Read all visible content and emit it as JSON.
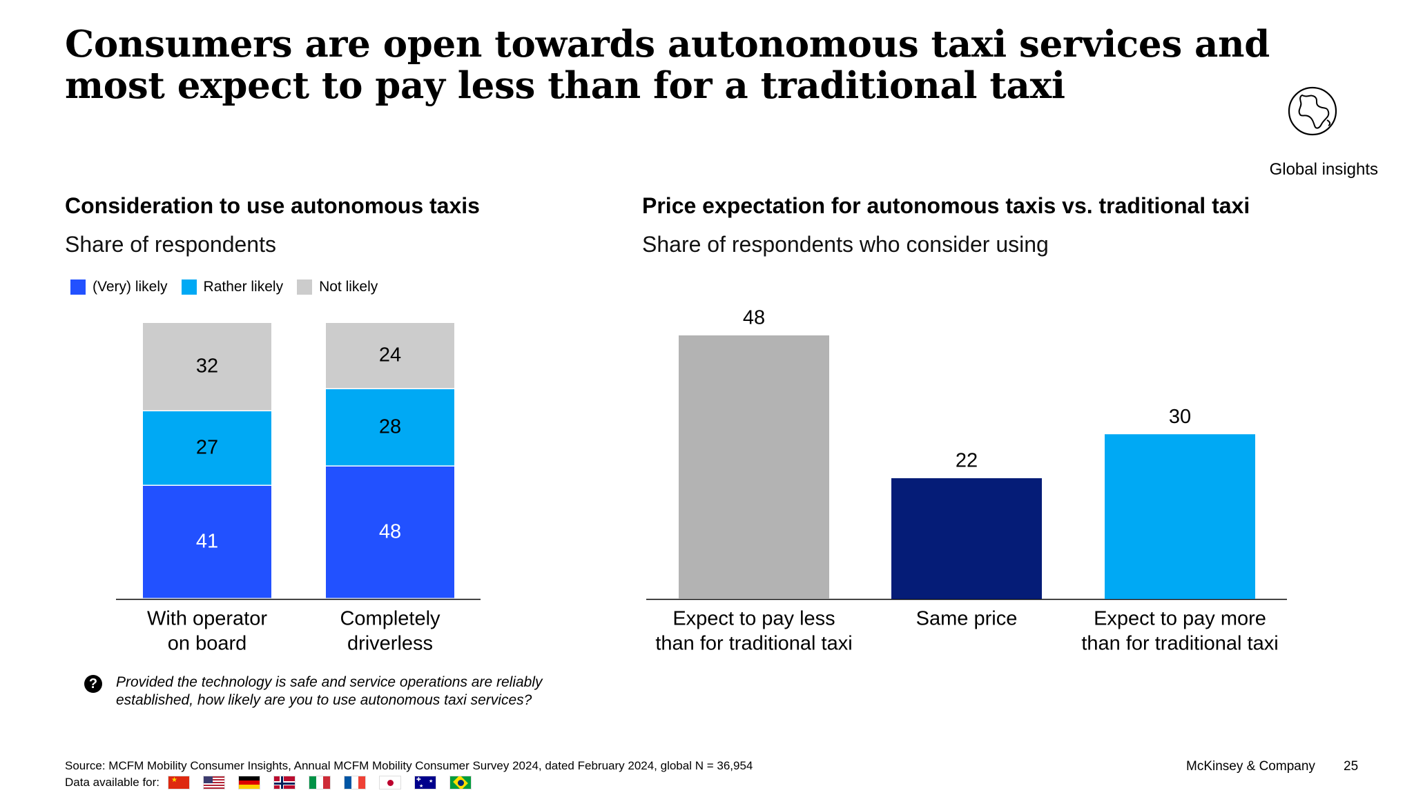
{
  "title": "Consumers are open towards autonomous taxi services and most expect to pay less than for a traditional taxi",
  "global_label": "Global insights",
  "icons": {
    "globe": "globe-icon",
    "question": "question-icon"
  },
  "left_panel": {
    "title": "Consideration to use autonomous taxis",
    "subtitle": "Share of respondents"
  },
  "right_panel": {
    "title": "Price expectation for autonomous taxis vs. traditional taxi",
    "subtitle": "Share of respondents who consider using"
  },
  "chart_data": [
    {
      "type": "bar",
      "stacked": true,
      "categories": [
        [
          "With operator",
          "on board"
        ],
        [
          "Completely",
          "driverless"
        ]
      ],
      "series": [
        {
          "name": "(Very) likely",
          "color": "#2251FF",
          "values": [
            41,
            48
          ]
        },
        {
          "name": "Rather likely",
          "color": "#00A9F4",
          "values": [
            27,
            28
          ]
        },
        {
          "name": "Not likely",
          "color": "#CCCCCC",
          "values": [
            32,
            24
          ]
        }
      ],
      "ylim": [
        0,
        100
      ],
      "legend": "top-left",
      "grid": false
    },
    {
      "type": "bar",
      "categories": [
        [
          "Expect to pay less",
          "than for traditional taxi"
        ],
        [
          "Same price"
        ],
        [
          "Expect to pay more",
          "than for traditional taxi"
        ]
      ],
      "values": [
        48,
        22,
        30
      ],
      "colors": [
        "#B3B3B3",
        "#051C77",
        "#00A9F4"
      ],
      "ylim": [
        0,
        48
      ],
      "grid": false
    }
  ],
  "question_text": "Provided the technology is safe and service operations are reliably established, how likely are you to use autonomous taxi services?",
  "question_mark": "?",
  "source": "Source: MCFM Mobility Consumer Insights, Annual MCFM Mobility Consumer Survey 2024, dated February 2024, global N = 36,954",
  "data_available_label": "Data available for:",
  "flags": [
    "china",
    "usa",
    "germany",
    "norway",
    "italy",
    "france",
    "japan",
    "australia",
    "brazil"
  ],
  "company": "McKinsey & Company",
  "page_number": "25"
}
